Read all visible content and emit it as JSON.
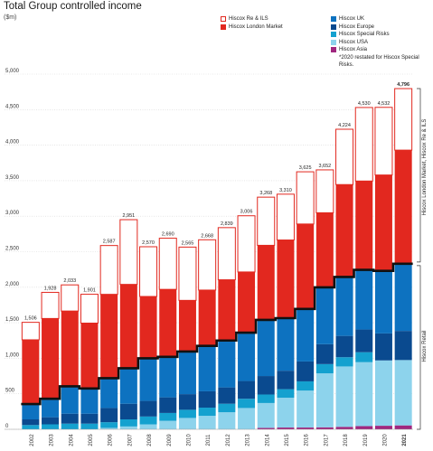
{
  "chart_data": {
    "type": "bar",
    "stacked": true,
    "title": "Total Group controlled income",
    "unit_label": "($m)",
    "categories": [
      "2002",
      "2003",
      "2004",
      "2005",
      "2006",
      "2007",
      "2008",
      "2009",
      "2010",
      "2011",
      "2012",
      "2013",
      "2014",
      "2015",
      "2016",
      "2017",
      "2018",
      "2019",
      "2020",
      "2021"
    ],
    "totals": [
      1506,
      1928,
      2033,
      1901,
      2587,
      2951,
      2570,
      2690,
      2565,
      2668,
      2839,
      3006,
      3268,
      3310,
      3625,
      3652,
      4224,
      4530,
      4532,
      4796
    ],
    "total_labels": [
      "1,506",
      "1,928",
      "2,033",
      "1,901",
      "2,587",
      "2,951",
      "2,570",
      "2,690",
      "2,565",
      "2,668",
      "2,839",
      "3,006",
      "3,268",
      "3,310",
      "3,625",
      "3,652",
      "4,224",
      "4,530",
      "4,532",
      "4,796"
    ],
    "series": [
      {
        "name": "Hiscox Asia",
        "color": "#a0277f",
        "values": [
          0,
          0,
          0,
          0,
          0,
          0,
          0,
          0,
          0,
          0,
          0,
          0,
          20,
          25,
          25,
          28,
          35,
          45,
          50,
          55
        ]
      },
      {
        "name": "Hiscox USA",
        "color": "#8dd3ec",
        "values": [
          0,
          0,
          0,
          0,
          20,
          40,
          70,
          120,
          160,
          190,
          240,
          300,
          350,
          420,
          520,
          760,
          850,
          900,
          920,
          920
        ]
      },
      {
        "name": "Hiscox Special Risks",
        "color": "#14a1cf",
        "values": [
          60,
          70,
          80,
          80,
          80,
          100,
          110,
          110,
          115,
          115,
          120,
          130,
          120,
          120,
          130,
          130,
          130,
          140,
          0,
          0
        ]
      },
      {
        "name": "Hiscox Europe",
        "color": "#0a4a8f",
        "values": [
          80,
          100,
          140,
          140,
          200,
          220,
          220,
          220,
          220,
          230,
          230,
          250,
          260,
          260,
          280,
          280,
          300,
          320,
          380,
          410
        ]
      },
      {
        "name": "Hiscox UK",
        "color": "#0d72c0",
        "values": [
          215,
          260,
          385,
          355,
          420,
          500,
          600,
          570,
          600,
          640,
          660,
          680,
          790,
          740,
          740,
          800,
          830,
          840,
          880,
          945
        ]
      },
      {
        "name": "Hiscox London Market",
        "color": "#e2281f",
        "values": [
          905,
          1130,
          1060,
          920,
          1180,
          1180,
          870,
          950,
          720,
          785,
          855,
          855,
          1050,
          1100,
          1195,
          1050,
          1300,
          1250,
          1350,
          1600
        ]
      },
      {
        "name": "Hiscox Re & ILS",
        "color": "#ffffff",
        "outline": "#e2281f",
        "values": [
          246,
          368,
          368,
          406,
          687,
          911,
          700,
          720,
          750,
          708,
          734,
          791,
          678,
          645,
          735,
          604,
          779,
          1035,
          952,
          866
        ]
      }
    ],
    "retail_totals": [
      355,
      430,
      605,
      575,
      720,
      860,
      1000,
      1020,
      1095,
      1175,
      1250,
      1360,
      1540,
      1565,
      1695,
      1998,
      2145,
      2245,
      2230,
      2330
    ],
    "ylim": [
      0,
      5000
    ],
    "yticks": [
      0,
      500,
      1000,
      1500,
      2000,
      2500,
      3000,
      3500,
      4000,
      4500,
      5000
    ],
    "ytick_labels": [
      "0",
      "500",
      "1,000",
      "1,500",
      "2,000",
      "2,500",
      "3,000",
      "3,500",
      "4,000",
      "4,500",
      "5,000"
    ],
    "grid": true,
    "legend_position": "top",
    "bracket_labels": {
      "upper": "Hiscox London Market, Hiscox Re & ILS",
      "lower": "Hiscox Retail"
    },
    "footnote": "*2020 restated for Hiscox Special Risks."
  },
  "colors": {
    "bracket": "#111111",
    "grid": "#d6d6d6",
    "axis_text": "#333333"
  }
}
